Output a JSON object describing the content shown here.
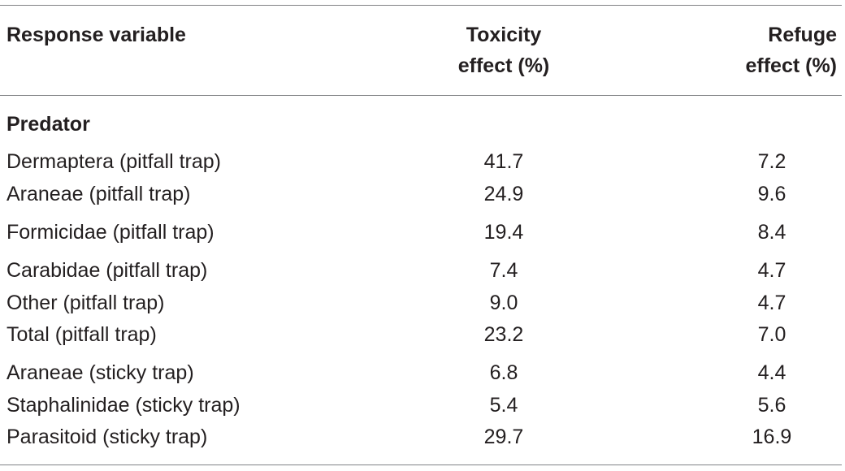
{
  "table": {
    "header": {
      "col1": "Response variable",
      "col2_line1": "Toxicity",
      "col2_line2": "effect (%)",
      "col3_line1": "Refuge",
      "col3_line2": "effect (%)"
    },
    "section_label": "Predator",
    "rows": [
      {
        "variable": "Dermaptera (pitfall trap)",
        "toxicity": "41.7",
        "refuge": "7.2"
      },
      {
        "variable": "Araneae (pitfall trap)",
        "toxicity": "24.9",
        "refuge": "9.6"
      },
      {
        "variable": "Formicidae (pitfall trap)",
        "toxicity": "19.4",
        "refuge": "8.4"
      },
      {
        "variable": "Carabidae (pitfall trap)",
        "toxicity": "7.4",
        "refuge": "4.7"
      },
      {
        "variable": "Other (pitfall trap)",
        "toxicity": "9.0",
        "refuge": "4.7"
      },
      {
        "variable": "Total (pitfall trap)",
        "toxicity": "23.2",
        "refuge": "7.0"
      },
      {
        "variable": "Araneae (sticky trap)",
        "toxicity": "6.8",
        "refuge": "4.4"
      },
      {
        "variable": "Staphalinidae (sticky trap)",
        "toxicity": "5.4",
        "refuge": "5.6"
      },
      {
        "variable": "Parasitoid (sticky trap)",
        "toxicity": "29.7",
        "refuge": "16.9"
      }
    ]
  }
}
